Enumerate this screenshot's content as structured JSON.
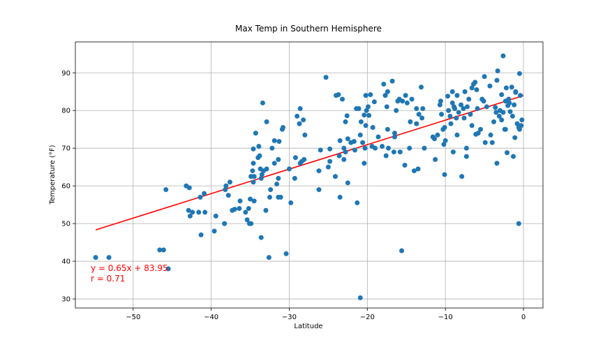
{
  "chart_data": {
    "type": "scatter",
    "title": "Max Temp in Southern Hemisphere",
    "xlabel": "Latitude",
    "ylabel": "Temperature (°F)",
    "xlim": [
      -57.4,
      2.5
    ],
    "ylim": [
      27.6,
      98.2
    ],
    "xticks": [
      -50,
      -40,
      -30,
      -20,
      -10,
      0
    ],
    "yticks": [
      30,
      40,
      50,
      60,
      70,
      80,
      90
    ],
    "grid": true,
    "colors": {
      "points": "#1f77b4",
      "regression": "#ff0000",
      "grid": "#b0b0b0"
    },
    "regression": {
      "slope": 0.65,
      "intercept": 83.95,
      "x_range": [
        -54.8,
        0
      ],
      "equation": "y = 0.65x + 83.95",
      "r_label": "r = 0.71"
    },
    "points": [
      [
        -54.8,
        41.0
      ],
      [
        -53.1,
        41.0
      ],
      [
        -46.6,
        43.0
      ],
      [
        -46.1,
        43.0
      ],
      [
        -45.8,
        59.0
      ],
      [
        -45.5,
        38.0
      ],
      [
        -43.2,
        60.0
      ],
      [
        -42.8,
        59.5
      ],
      [
        -42.9,
        53.5
      ],
      [
        -42.7,
        52.0
      ],
      [
        -42.4,
        53.0
      ],
      [
        -41.6,
        53.0
      ],
      [
        -41.4,
        57.0
      ],
      [
        -41.3,
        47.0
      ],
      [
        -40.9,
        58.0
      ],
      [
        -40.8,
        53.0
      ],
      [
        -39.6,
        48.0
      ],
      [
        -39.4,
        52.0
      ],
      [
        -38.3,
        50.0
      ],
      [
        -38.2,
        59.0
      ],
      [
        -38.1,
        60.0
      ],
      [
        -37.8,
        57.5
      ],
      [
        -37.6,
        61.0
      ],
      [
        -37.3,
        53.5
      ],
      [
        -37.0,
        53.8
      ],
      [
        -36.4,
        54.0
      ],
      [
        -36.3,
        56.0
      ],
      [
        -35.6,
        53.0
      ],
      [
        -35.4,
        51.0
      ],
      [
        -35.2,
        54.0
      ],
      [
        -35.1,
        50.0
      ],
      [
        -34.9,
        50.0
      ],
      [
        -35.0,
        56.5
      ],
      [
        -34.9,
        62.5
      ],
      [
        -34.6,
        61.0
      ],
      [
        -34.7,
        64.0
      ],
      [
        -34.5,
        56.0
      ],
      [
        -34.5,
        62.5
      ],
      [
        -34.6,
        66.0
      ],
      [
        -34.6,
        69.8
      ],
      [
        -34.3,
        74.0
      ],
      [
        -34.0,
        67.5
      ],
      [
        -33.9,
        70.5
      ],
      [
        -33.8,
        68.0
      ],
      [
        -33.7,
        64.5
      ],
      [
        -33.6,
        62.0
      ],
      [
        -33.6,
        46.3
      ],
      [
        -33.5,
        63.0
      ],
      [
        -33.4,
        82.0
      ],
      [
        -33.3,
        64.0
      ],
      [
        -33.0,
        53.5
      ],
      [
        -32.9,
        64.5
      ],
      [
        -32.9,
        77.0
      ],
      [
        -32.6,
        41.0
      ],
      [
        -32.5,
        57.0
      ],
      [
        -32.4,
        59.0
      ],
      [
        -32.2,
        70.0
      ],
      [
        -31.9,
        66.0
      ],
      [
        -31.9,
        72.0
      ],
      [
        -31.6,
        60.5
      ],
      [
        -31.4,
        57.0
      ],
      [
        -31.4,
        67.0
      ],
      [
        -31.4,
        62.0
      ],
      [
        -31.3,
        71.8
      ],
      [
        -31.1,
        57.0
      ],
      [
        -30.9,
        75.0
      ],
      [
        -30.8,
        75.5
      ],
      [
        -30.4,
        42.0
      ],
      [
        -30.0,
        64.5
      ],
      [
        -29.8,
        55.5
      ],
      [
        -29.3,
        62.0
      ],
      [
        -29.2,
        67.5
      ],
      [
        -29.0,
        78.5
      ],
      [
        -28.7,
        76.5
      ],
      [
        -28.6,
        80.5
      ],
      [
        -28.6,
        66.0
      ],
      [
        -28.4,
        66.5
      ],
      [
        -28.2,
        77.5
      ],
      [
        -28.1,
        67.0
      ],
      [
        -28.0,
        73.5
      ],
      [
        -26.2,
        59.0
      ],
      [
        -26.2,
        64.0
      ],
      [
        -26.0,
        69.5
      ],
      [
        -25.0,
        65.0
      ],
      [
        -24.8,
        66.5
      ],
      [
        -25.3,
        88.8
      ],
      [
        -24.8,
        69.8
      ],
      [
        -24.1,
        62.5
      ],
      [
        -24.0,
        84.0
      ],
      [
        -23.7,
        84.2
      ],
      [
        -23.6,
        68.0
      ],
      [
        -23.5,
        57.0
      ],
      [
        -23.5,
        72.0
      ],
      [
        -23.2,
        83.0
      ],
      [
        -23.0,
        67.0
      ],
      [
        -23.0,
        70.0
      ],
      [
        -22.8,
        77.0
      ],
      [
        -22.6,
        78.6
      ],
      [
        -22.8,
        69.0
      ],
      [
        -22.5,
        72.5
      ],
      [
        -22.5,
        60.8
      ],
      [
        -22.1,
        71.5
      ],
      [
        -21.7,
        71.8
      ],
      [
        -21.6,
        69.5
      ],
      [
        -21.4,
        80.5
      ],
      [
        -21.3,
        55.5
      ],
      [
        -21.1,
        80.5
      ],
      [
        -20.9,
        30.3
      ],
      [
        -20.9,
        73.5
      ],
      [
        -20.8,
        77.0
      ],
      [
        -20.6,
        71.5
      ],
      [
        -20.4,
        66.0
      ],
      [
        -20.4,
        78.8
      ],
      [
        -20.3,
        70.0
      ],
      [
        -20.2,
        84.0
      ],
      [
        -20.1,
        80.0
      ],
      [
        -20.2,
        76.0
      ],
      [
        -19.9,
        81.0
      ],
      [
        -19.8,
        78.7
      ],
      [
        -19.6,
        84.2
      ],
      [
        -19.4,
        70.5
      ],
      [
        -19.3,
        75.5
      ],
      [
        -19.1,
        82.3
      ],
      [
        -19.0,
        70.0
      ],
      [
        -18.6,
        73.0
      ],
      [
        -18.1,
        70.5
      ],
      [
        -17.9,
        87.0
      ],
      [
        -17.7,
        84.0
      ],
      [
        -17.6,
        68.0
      ],
      [
        -17.5,
        81.0
      ],
      [
        -17.4,
        85.0
      ],
      [
        -17.4,
        75.0
      ],
      [
        -17.3,
        70.0
      ],
      [
        -16.8,
        87.8
      ],
      [
        -16.6,
        69.0
      ],
      [
        -16.5,
        74.0
      ],
      [
        -16.5,
        73.0
      ],
      [
        -16.3,
        80.0
      ],
      [
        -16.1,
        82.5
      ],
      [
        -15.9,
        83.0
      ],
      [
        -15.8,
        69.0
      ],
      [
        -15.6,
        42.8
      ],
      [
        -15.5,
        82.5
      ],
      [
        -15.2,
        65.5
      ],
      [
        -15.1,
        84.0
      ],
      [
        -14.9,
        82.0
      ],
      [
        -14.6,
        70.0
      ],
      [
        -14.5,
        77.0
      ],
      [
        -14.3,
        83.0
      ],
      [
        -14.0,
        64.0
      ],
      [
        -13.7,
        80.5
      ],
      [
        -13.7,
        76.5
      ],
      [
        -13.5,
        64.5
      ],
      [
        -13.4,
        79.0
      ],
      [
        -13.1,
        86.2
      ],
      [
        -13.0,
        78.0
      ],
      [
        -12.9,
        80.5
      ],
      [
        -12.7,
        70.0
      ],
      [
        -11.6,
        73.0
      ],
      [
        -11.4,
        72.5
      ],
      [
        -11.3,
        67.0
      ],
      [
        -11.0,
        73.5
      ],
      [
        -10.7,
        81.5
      ],
      [
        -10.6,
        82.5
      ],
      [
        -10.5,
        79.0
      ],
      [
        -10.3,
        75.0
      ],
      [
        -10.2,
        71.0
      ],
      [
        -10.1,
        63.0
      ],
      [
        -10.1,
        75.5
      ],
      [
        -10.0,
        72.0
      ],
      [
        -9.7,
        83.8
      ],
      [
        -9.6,
        80.0
      ],
      [
        -9.4,
        78.5
      ],
      [
        -9.3,
        76.5
      ],
      [
        -9.1,
        82.0
      ],
      [
        -9.1,
        85.0
      ],
      [
        -9.0,
        69.0
      ],
      [
        -8.9,
        81.0
      ],
      [
        -8.8,
        80.5
      ],
      [
        -8.6,
        78.0
      ],
      [
        -8.5,
        84.0
      ],
      [
        -8.5,
        73.5
      ],
      [
        -8.3,
        79.5
      ],
      [
        -8.0,
        81.5
      ],
      [
        -7.9,
        62.5
      ],
      [
        -7.7,
        80.5
      ],
      [
        -7.6,
        78.0
      ],
      [
        -7.5,
        85.0
      ],
      [
        -7.3,
        67.8
      ],
      [
        -7.3,
        70.0
      ],
      [
        -7.2,
        81.0
      ],
      [
        -7.0,
        83.0
      ],
      [
        -6.8,
        79.0
      ],
      [
        -6.6,
        76.0
      ],
      [
        -6.6,
        86.0
      ],
      [
        -6.4,
        87.0
      ],
      [
        -6.2,
        87.5
      ],
      [
        -6.1,
        73.7
      ],
      [
        -6.0,
        85.5
      ],
      [
        -5.9,
        80.5
      ],
      [
        -5.8,
        74.0
      ],
      [
        -5.5,
        75.0
      ],
      [
        -5.3,
        83.0
      ],
      [
        -5.1,
        82.5
      ],
      [
        -5.0,
        89.0
      ],
      [
        -4.9,
        71.5
      ],
      [
        -4.7,
        81.0
      ],
      [
        -4.3,
        86.5
      ],
      [
        -4.2,
        73.5
      ],
      [
        -4.0,
        71.5
      ],
      [
        -3.8,
        77.0
      ],
      [
        -3.6,
        80.8
      ],
      [
        -3.5,
        79.5
      ],
      [
        -3.4,
        66.0
      ],
      [
        -3.4,
        88.0
      ],
      [
        -3.3,
        90.5
      ],
      [
        -3.1,
        78.5
      ],
      [
        -3.0,
        80.0
      ],
      [
        -2.8,
        77.5
      ],
      [
        -2.8,
        84.2
      ],
      [
        -2.6,
        79.5
      ],
      [
        -2.6,
        94.5
      ],
      [
        -2.4,
        75.0
      ],
      [
        -2.3,
        75.0
      ],
      [
        -2.3,
        82.5
      ],
      [
        -2.2,
        86.0
      ],
      [
        -2.1,
        68.8
      ],
      [
        -2.0,
        81.3
      ],
      [
        -1.9,
        83.0
      ],
      [
        -1.8,
        82.0
      ],
      [
        -1.7,
        79.7
      ],
      [
        -1.5,
        86.2
      ],
      [
        -1.4,
        78.5
      ],
      [
        -1.3,
        67.8
      ],
      [
        -1.2,
        81.5
      ],
      [
        -1.1,
        72.8
      ],
      [
        -1.0,
        85.0
      ],
      [
        -1.0,
        84.8
      ],
      [
        -0.8,
        76.5
      ],
      [
        -0.6,
        75.5
      ],
      [
        -0.6,
        50.0
      ],
      [
        -0.5,
        75.0
      ],
      [
        -0.5,
        89.8
      ],
      [
        -0.4,
        84.0
      ],
      [
        -0.3,
        76.0
      ],
      [
        -0.2,
        77.5
      ]
    ]
  }
}
